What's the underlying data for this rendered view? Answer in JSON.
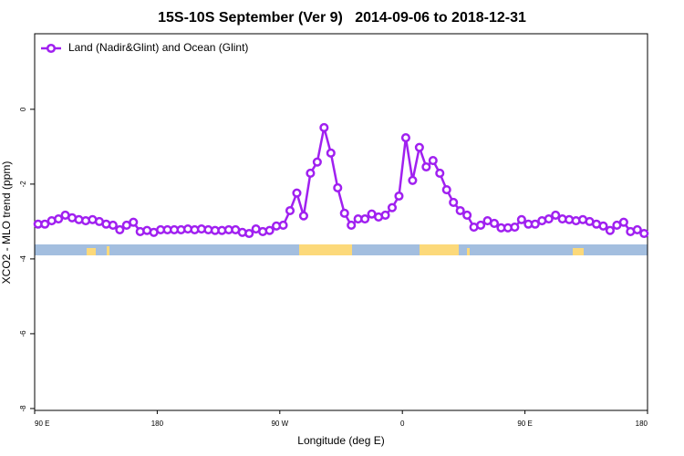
{
  "chart_data": {
    "type": "line",
    "title": "15S-10S September (Ver 9)   2014-09-06 to 2018-12-31",
    "xlabel": "Longitude (deg E)",
    "ylabel": "XCO2 - MLO trend (ppm)",
    "xlim": [
      90,
      540
    ],
    "ylim": [
      -8.05,
      2.02
    ],
    "xticks": [
      {
        "value": 90,
        "label": "90 E"
      },
      180,
      {
        "value": 270,
        "label": "90 W"
      },
      {
        "value": 360,
        "label": "0"
      },
      {
        "value": 450,
        "label": "90 E"
      },
      {
        "value": 540,
        "label": "180"
      }
    ],
    "yticks": [
      0,
      -2,
      -4,
      -6,
      -8
    ],
    "legend": "top-left",
    "x": [
      92.5,
      97.5,
      102.5,
      107.5,
      112.5,
      117.5,
      122.5,
      127.5,
      132.5,
      137.5,
      142.5,
      147.5,
      152.5,
      157.5,
      162.5,
      167.5,
      172.5,
      177.5,
      182.5,
      187.5,
      192.5,
      197.5,
      202.5,
      207.5,
      212.5,
      217.5,
      222.5,
      227.5,
      232.5,
      237.5,
      242.5,
      247.5,
      252.5,
      257.5,
      262.5,
      267.5,
      272.5,
      277.5,
      282.5,
      287.5,
      292.5,
      297.5,
      302.5,
      307.5,
      312.5,
      317.5,
      322.5,
      327.5,
      332.5,
      337.5,
      342.5,
      347.5,
      352.5,
      357.5,
      362.5,
      367.5,
      372.5,
      377.5,
      382.5,
      387.5,
      392.5,
      397.5,
      402.5,
      407.5,
      412.5,
      417.5,
      422.5,
      427.5,
      432.5,
      437.5,
      442.5,
      447.5,
      452.5,
      457.5,
      462.5,
      467.5,
      472.5,
      477.5,
      482.5,
      487.5,
      492.5,
      497.5,
      502.5,
      507.5,
      512.5,
      517.5,
      522.5,
      527.5,
      532.5,
      537.5
    ],
    "series": [
      {
        "name": "Land (Nadir&Glint) and Ocean (Glint)",
        "color": "#a020f0",
        "values": [
          -3.07,
          -3.07,
          -2.98,
          -2.93,
          -2.83,
          -2.9,
          -2.95,
          -2.98,
          -2.95,
          -3.0,
          -3.07,
          -3.1,
          -3.22,
          -3.1,
          -3.02,
          -3.27,
          -3.24,
          -3.29,
          -3.22,
          -3.22,
          -3.22,
          -3.22,
          -3.2,
          -3.22,
          -3.2,
          -3.22,
          -3.24,
          -3.24,
          -3.22,
          -3.22,
          -3.29,
          -3.32,
          -3.2,
          -3.27,
          -3.24,
          -3.12,
          -3.1,
          -2.71,
          -2.24,
          -2.85,
          -1.71,
          -1.41,
          -0.49,
          -1.17,
          -2.1,
          -2.78,
          -3.1,
          -2.93,
          -2.93,
          -2.8,
          -2.88,
          -2.83,
          -2.63,
          -2.32,
          -0.76,
          -1.9,
          -1.02,
          -1.54,
          -1.37,
          -1.71,
          -2.15,
          -2.49,
          -2.71,
          -2.83,
          -3.15,
          -3.1,
          -2.98,
          -3.05,
          -3.17,
          -3.17,
          -3.15,
          -2.95,
          -3.07,
          -3.07,
          -2.98,
          -2.93,
          -2.83,
          -2.93,
          -2.95,
          -2.98,
          -2.95,
          -3.0,
          -3.07,
          -3.12,
          -3.24,
          -3.1,
          -3.02,
          -3.27,
          -3.22,
          -3.32
        ]
      }
    ]
  }
}
